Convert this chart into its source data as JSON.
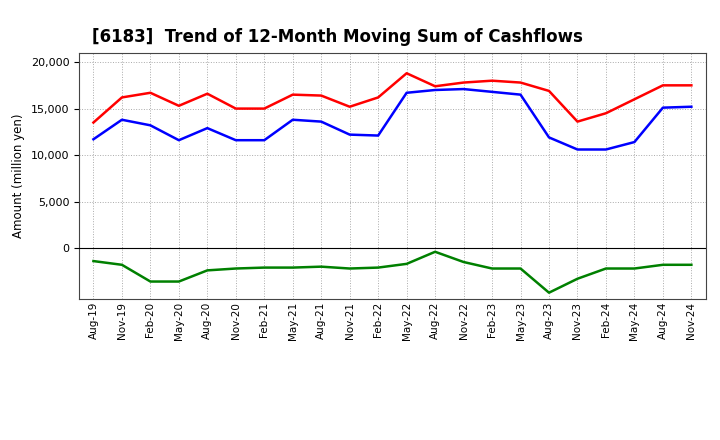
{
  "title": "[6183]  Trend of 12-Month Moving Sum of Cashflows",
  "ylabel": "Amount (million yen)",
  "background_color": "#ffffff",
  "grid_color": "#aaaaaa",
  "labels": [
    "Aug-19",
    "Nov-19",
    "Feb-20",
    "May-20",
    "Aug-20",
    "Nov-20",
    "Feb-21",
    "May-21",
    "Aug-21",
    "Nov-21",
    "Feb-22",
    "May-22",
    "Aug-22",
    "Nov-22",
    "Feb-23",
    "May-23",
    "Aug-23",
    "Nov-23",
    "Feb-24",
    "May-24",
    "Aug-24",
    "Nov-24"
  ],
  "operating": [
    13500,
    16200,
    16700,
    15300,
    16600,
    15000,
    15000,
    16500,
    16400,
    15200,
    16200,
    18800,
    17400,
    17800,
    18000,
    17800,
    16900,
    13600,
    14500,
    16000,
    17500,
    17500
  ],
  "investing": [
    -1400,
    -1800,
    -3600,
    -3600,
    -2400,
    -2200,
    -2100,
    -2100,
    -2000,
    -2200,
    -2100,
    -1700,
    -400,
    -1500,
    -2200,
    -2200,
    -4800,
    -3300,
    -2200,
    -2200,
    -1800,
    -1800
  ],
  "free": [
    11700,
    13800,
    13200,
    11600,
    12900,
    11600,
    11600,
    13800,
    13600,
    12200,
    12100,
    16700,
    17000,
    17100,
    16800,
    16500,
    11900,
    10600,
    10600,
    11400,
    15100,
    15200
  ],
  "line_colors": {
    "operating": "#ff0000",
    "investing": "#008000",
    "free": "#0000ff"
  },
  "ylim": [
    -5500,
    21000
  ],
  "yticks": [
    0,
    5000,
    10000,
    15000,
    20000
  ]
}
